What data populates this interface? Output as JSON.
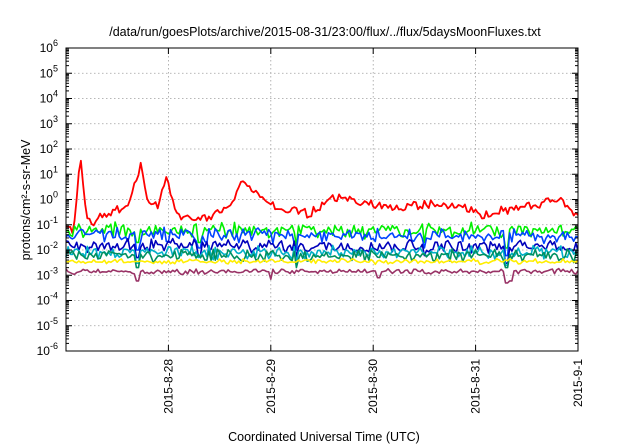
{
  "chart_data": {
    "type": "line",
    "title": "/data/run/goesPlots/archive/2015-08-31/23:00/flux/../flux/5daysMoonFluxes.txt",
    "xlabel": "Coordinated Universal Time (UTC)",
    "ylabel": "protons/cm²-s-sr-MeV",
    "yscale": "log",
    "ylim": [
      1e-06,
      1000000.0
    ],
    "xlim": [
      -1.0,
      4.0
    ],
    "grid": true,
    "y_tick_labels": [
      {
        "value": 1e-06,
        "base": "10",
        "exp": "-6"
      },
      {
        "value": 1e-05,
        "base": "10",
        "exp": "-5"
      },
      {
        "value": 0.0001,
        "base": "10",
        "exp": "-4"
      },
      {
        "value": 0.001,
        "base": "10",
        "exp": "-3"
      },
      {
        "value": 0.01,
        "base": "10",
        "exp": "-2"
      },
      {
        "value": 0.1,
        "base": "10",
        "exp": "-1"
      },
      {
        "value": 1.0,
        "base": "10",
        "exp": "0"
      },
      {
        "value": 10.0,
        "base": "10",
        "exp": "1"
      },
      {
        "value": 100.0,
        "base": "10",
        "exp": "2"
      },
      {
        "value": 1000.0,
        "base": "10",
        "exp": "3"
      },
      {
        "value": 10000.0,
        "base": "10",
        "exp": "4"
      },
      {
        "value": 100000.0,
        "base": "10",
        "exp": "5"
      },
      {
        "value": 1000000.0,
        "base": "10",
        "exp": "6"
      }
    ],
    "x_tick_labels": [
      {
        "value": 0,
        "label": "2015-8-28"
      },
      {
        "value": 1,
        "label": "2015-8-29"
      },
      {
        "value": 2,
        "label": "2015-8-30"
      },
      {
        "value": 3,
        "label": "2015-8-31"
      },
      {
        "value": 4,
        "label": "2015-9-1"
      }
    ],
    "series": [
      {
        "color": "#ff0000",
        "baseline": [
          [
            -1.0,
            0.08
          ],
          [
            -0.92,
            0.05
          ],
          [
            -0.86,
            0.1
          ],
          [
            -0.7,
            0.15
          ],
          [
            -0.6,
            0.25
          ],
          [
            -0.5,
            0.4
          ],
          [
            -0.4,
            0.6
          ],
          [
            -0.3,
            1.5
          ],
          [
            -0.2,
            0.8
          ],
          [
            -0.1,
            0.6
          ],
          [
            -0.02,
            1.5
          ],
          [
            0.05,
            0.7
          ],
          [
            0.1,
            0.25
          ],
          [
            0.2,
            0.18
          ],
          [
            0.3,
            0.2
          ],
          [
            0.45,
            0.25
          ],
          [
            0.55,
            0.4
          ],
          [
            0.65,
            1.2
          ],
          [
            0.75,
            3
          ],
          [
            0.85,
            2.0
          ],
          [
            0.95,
            1.0
          ],
          [
            1.05,
            0.4
          ],
          [
            1.15,
            0.3
          ],
          [
            1.25,
            0.5
          ],
          [
            1.35,
            0.25
          ],
          [
            1.45,
            0.35
          ],
          [
            1.55,
            0.9
          ],
          [
            1.7,
            1.2
          ],
          [
            1.85,
            0.9
          ],
          [
            2.0,
            0.7
          ],
          [
            2.15,
            0.45
          ],
          [
            2.3,
            0.5
          ],
          [
            2.5,
            0.6
          ],
          [
            2.7,
            0.6
          ],
          [
            2.9,
            0.45
          ],
          [
            3.0,
            0.3
          ],
          [
            3.1,
            0.22
          ],
          [
            3.2,
            0.3
          ],
          [
            3.3,
            0.4
          ],
          [
            3.45,
            0.5
          ],
          [
            3.6,
            0.6
          ],
          [
            3.7,
            0.9
          ],
          [
            3.8,
            1.0
          ],
          [
            3.9,
            0.5
          ],
          [
            4.0,
            0.25
          ]
        ],
        "noise": 0.22,
        "spikes": [
          [
            -0.86,
            70
          ],
          [
            -0.27,
            30
          ],
          [
            -0.02,
            8
          ],
          [
            -0.32,
            6
          ],
          [
            0.72,
            6
          ]
        ],
        "dips": []
      },
      {
        "color": "#00ee00",
        "baseline": [
          [
            -1.0,
            0.06
          ],
          [
            4.0,
            0.06
          ]
        ],
        "noise": 0.35,
        "spikes": [],
        "dips": [
          [
            -0.3,
            0.02
          ],
          [
            0.3,
            0.02
          ],
          [
            1.25,
            0.015
          ],
          [
            2.5,
            0.02
          ],
          [
            3.3,
            0.012
          ]
        ]
      },
      {
        "color": "#0044ff",
        "baseline": [
          [
            -1.0,
            0.04
          ],
          [
            4.0,
            0.035
          ]
        ],
        "noise": 0.35,
        "spikes": [],
        "dips": [
          [
            -0.3,
            0.01
          ],
          [
            0.3,
            0.012
          ],
          [
            1.25,
            0.01
          ],
          [
            2.5,
            0.012
          ],
          [
            3.3,
            0.006
          ]
        ]
      },
      {
        "color": "#0000bb",
        "baseline": [
          [
            -1.0,
            0.015
          ],
          [
            4.0,
            0.014
          ]
        ],
        "noise": 0.32,
        "spikes": [],
        "dips": [
          [
            -0.3,
            0.005
          ],
          [
            0.3,
            0.006
          ],
          [
            1.25,
            0.005
          ],
          [
            2.5,
            0.006
          ],
          [
            3.3,
            0.003
          ]
        ]
      },
      {
        "color": "#00b0c8",
        "baseline": [
          [
            -1.0,
            0.008
          ],
          [
            4.0,
            0.008
          ]
        ],
        "noise": 0.3,
        "spikes": [],
        "dips": [
          [
            -0.3,
            0.003
          ],
          [
            1.25,
            0.003
          ],
          [
            3.3,
            0.0025
          ]
        ]
      },
      {
        "color": "#009060",
        "baseline": [
          [
            -1.0,
            0.006
          ],
          [
            4.0,
            0.006
          ]
        ],
        "noise": 0.3,
        "spikes": [],
        "dips": [
          [
            -0.3,
            0.002
          ],
          [
            1.25,
            0.002
          ],
          [
            3.3,
            0.002
          ]
        ]
      },
      {
        "color": "#ffee00",
        "baseline": [
          [
            -1.0,
            0.0035
          ],
          [
            4.0,
            0.0035
          ]
        ],
        "noise": 0.12,
        "spikes": [],
        "dips": []
      },
      {
        "color": "#993366",
        "baseline": [
          [
            -1.0,
            0.0014
          ],
          [
            4.0,
            0.0014
          ]
        ],
        "noise": 0.12,
        "spikes": [],
        "dips": [
          [
            -0.3,
            0.0006
          ],
          [
            1.0,
            0.0007
          ],
          [
            2.05,
            0.0008
          ],
          [
            3.3,
            0.0005
          ],
          [
            3.35,
            0.0006
          ]
        ]
      }
    ]
  }
}
